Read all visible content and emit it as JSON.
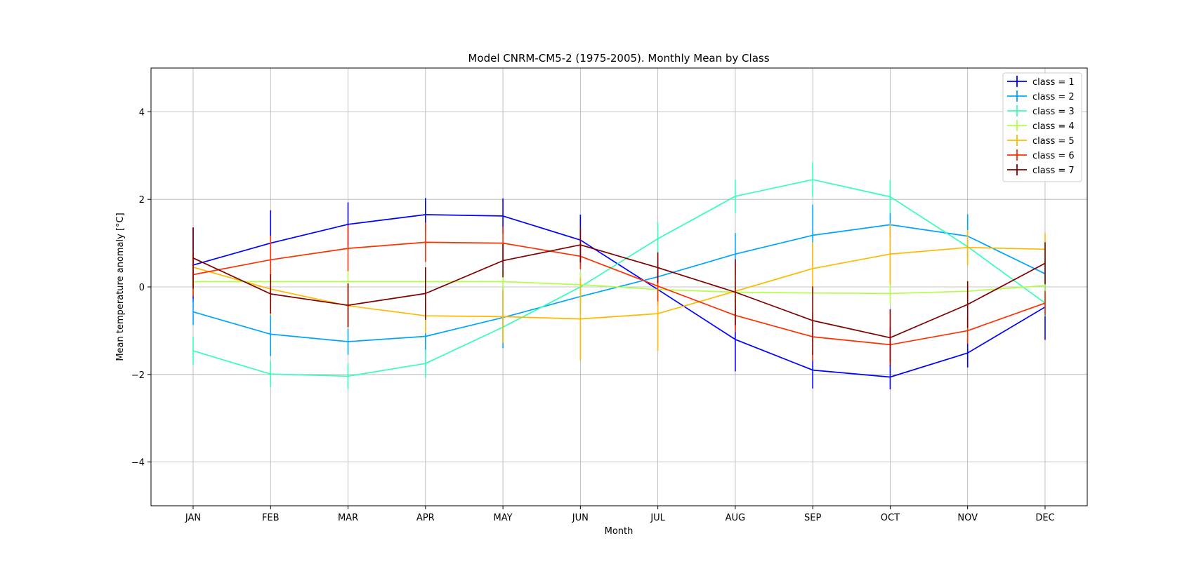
{
  "chart_data": {
    "type": "line",
    "title": "Model CNRM-CM5-2 (1975-2005). Monthly Mean by Class",
    "xlabel": "Month",
    "ylabel": "Mean temperature anomaly [°C]",
    "categories": [
      "JAN",
      "FEB",
      "MAR",
      "APR",
      "MAY",
      "JUN",
      "JUL",
      "AUG",
      "SEP",
      "OCT",
      "NOV",
      "DEC"
    ],
    "ylim": [
      -5,
      5
    ],
    "yticks": [
      -4,
      -2,
      0,
      2,
      4
    ],
    "ytick_labels": [
      "−4",
      "−2",
      "0",
      "2",
      "4"
    ],
    "grid": true,
    "error_bars": true,
    "legend_position": "top-right",
    "series": [
      {
        "name": "class = 1",
        "color": "#0000ff",
        "values": [
          0.5,
          1.0,
          1.43,
          1.65,
          1.62,
          1.07,
          -0.06,
          -1.2,
          -1.9,
          -2.06,
          -1.51,
          -0.46
        ],
        "errors": [
          0.85,
          0.75,
          0.5,
          0.38,
          0.4,
          0.58,
          0.38,
          0.73,
          0.42,
          0.28,
          0.33,
          0.75
        ]
      },
      {
        "name": "class = 2",
        "color": "#00a4ff",
        "values": [
          -0.57,
          -1.08,
          -1.25,
          -1.13,
          -0.7,
          -0.22,
          0.23,
          0.75,
          1.18,
          1.42,
          1.16,
          0.3
        ],
        "errors": [
          0.3,
          0.5,
          0.3,
          0.35,
          0.7,
          0.4,
          0.4,
          0.48,
          0.7,
          0.28,
          0.5,
          0.35
        ]
      },
      {
        "name": "class = 3",
        "color": "#36ffb5",
        "values": [
          -1.46,
          -1.99,
          -2.04,
          -1.75,
          -0.92,
          0.0,
          1.1,
          2.07,
          2.45,
          2.06,
          0.92,
          -0.37
        ],
        "errors": [
          0.32,
          0.3,
          0.3,
          0.32,
          0.35,
          0.35,
          0.38,
          0.38,
          0.4,
          0.38,
          0.35,
          0.3
        ]
      },
      {
        "name": "class = 4",
        "color": "#b1ff46",
        "values": [
          0.12,
          0.12,
          0.12,
          0.12,
          0.12,
          0.05,
          -0.06,
          -0.12,
          -0.14,
          -0.15,
          -0.1,
          0.03
        ],
        "errors": [
          0.3,
          0.25,
          0.25,
          0.25,
          0.25,
          0.3,
          0.25,
          0.25,
          0.25,
          0.25,
          0.25,
          0.25
        ]
      },
      {
        "name": "class = 5",
        "color": "#ffb900",
        "values": [
          0.45,
          -0.05,
          -0.43,
          -0.66,
          -0.68,
          -0.73,
          -0.61,
          -0.1,
          0.42,
          0.75,
          0.9,
          0.86
        ],
        "errors": [
          0.4,
          0.6,
          0.5,
          0.4,
          0.6,
          0.95,
          0.85,
          0.6,
          0.6,
          0.7,
          0.4,
          0.38
        ]
      },
      {
        "name": "class = 6",
        "color": "#ff3000",
        "values": [
          0.28,
          0.62,
          0.88,
          1.02,
          1.0,
          0.7,
          0.02,
          -0.65,
          -1.14,
          -1.32,
          -1.0,
          -0.37
        ],
        "errors": [
          0.5,
          0.55,
          0.52,
          0.45,
          0.38,
          0.3,
          0.35,
          0.38,
          0.55,
          0.4,
          0.3,
          0.28
        ]
      },
      {
        "name": "class = 7",
        "color": "#800000",
        "values": [
          0.66,
          -0.16,
          -0.42,
          -0.15,
          0.6,
          0.96,
          0.44,
          -0.12,
          -0.77,
          -1.16,
          -0.4,
          0.54
        ],
        "errors": [
          0.7,
          0.45,
          0.5,
          0.6,
          0.38,
          0.4,
          0.35,
          0.75,
          0.78,
          0.65,
          0.53,
          0.48
        ]
      }
    ]
  }
}
